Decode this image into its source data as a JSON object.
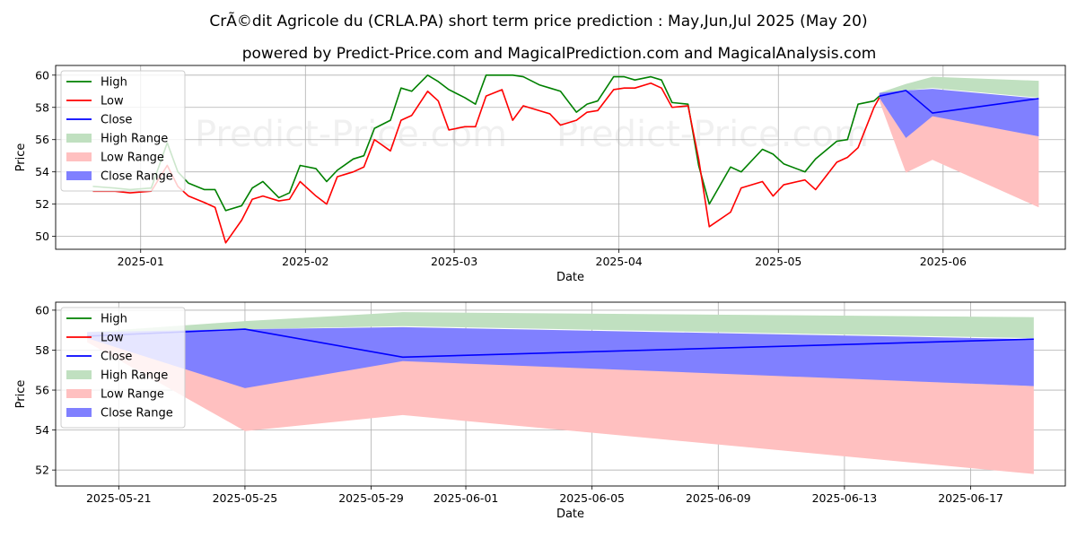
{
  "title": "CrÃ©dit Agricole du (CRLA.PA) short term price prediction : May,Jun,Jul 2025 (May 20)",
  "subtitle": "powered by Predict-Price.com and MagicalPrediction.com and MagicalAnalysis.com",
  "watermark": "Predict-Price.com",
  "colors": {
    "high": "#008000",
    "low": "#ff0000",
    "close": "#0000ff",
    "high_range": "#c0e0c0",
    "low_range": "#ffc0c0",
    "close_range": "#8080ff"
  },
  "legend": {
    "placement": "top-left",
    "items": [
      {
        "label": "High",
        "kind": "line",
        "color": "#008000"
      },
      {
        "label": "Low",
        "kind": "line",
        "color": "#ff0000"
      },
      {
        "label": "Close",
        "kind": "line",
        "color": "#0000ff"
      },
      {
        "label": "High Range",
        "kind": "patch",
        "color": "#c0e0c0"
      },
      {
        "label": "Low Range",
        "kind": "patch",
        "color": "#ffc0c0"
      },
      {
        "label": "Close Range",
        "kind": "patch",
        "color": "#8080ff"
      }
    ]
  },
  "chart_data": [
    {
      "type": "line",
      "xlabel": "Date",
      "ylabel": "Price",
      "xlim": [
        "2024-12-16",
        "2025-06-24"
      ],
      "ylim": [
        49.2,
        60.6
      ],
      "yticks": [
        50,
        52,
        54,
        56,
        58,
        60
      ],
      "xticks": [
        "2025-01",
        "2025-02",
        "2025-03",
        "2025-04",
        "2025-05",
        "2025-06"
      ],
      "grid": true,
      "series": [
        {
          "name": "High",
          "x": [
            "2024-12-23",
            "2024-12-27",
            "2024-12-30",
            "2025-01-03",
            "2025-01-06",
            "2025-01-08",
            "2025-01-10",
            "2025-01-13",
            "2025-01-15",
            "2025-01-17",
            "2025-01-20",
            "2025-01-22",
            "2025-01-24",
            "2025-01-27",
            "2025-01-29",
            "2025-01-31",
            "2025-02-03",
            "2025-02-05",
            "2025-02-07",
            "2025-02-10",
            "2025-02-12",
            "2025-02-14",
            "2025-02-17",
            "2025-02-19",
            "2025-02-21",
            "2025-02-24",
            "2025-02-26",
            "2025-02-28",
            "2025-03-03",
            "2025-03-05",
            "2025-03-07",
            "2025-03-10",
            "2025-03-12",
            "2025-03-14",
            "2025-03-17",
            "2025-03-19",
            "2025-03-21",
            "2025-03-24",
            "2025-03-26",
            "2025-03-28",
            "2025-03-31",
            "2025-04-02",
            "2025-04-04",
            "2025-04-07",
            "2025-04-09",
            "2025-04-11",
            "2025-04-14",
            "2025-04-16",
            "2025-04-18",
            "2025-04-22",
            "2025-04-24",
            "2025-04-28",
            "2025-04-30",
            "2025-05-02",
            "2025-05-06",
            "2025-05-08",
            "2025-05-12",
            "2025-05-14",
            "2025-05-16",
            "2025-05-19",
            "2025-05-20"
          ],
          "values": [
            53.1,
            53.0,
            52.9,
            53.0,
            55.8,
            54.0,
            53.3,
            52.9,
            52.9,
            51.6,
            51.9,
            53.0,
            53.4,
            52.4,
            52.7,
            54.4,
            54.2,
            53.4,
            54.1,
            54.8,
            55.0,
            56.7,
            57.2,
            59.2,
            59.0,
            60.0,
            59.6,
            59.1,
            58.6,
            58.2,
            60.0,
            60.0,
            60.0,
            59.9,
            59.4,
            59.2,
            59.0,
            57.7,
            58.2,
            58.4,
            59.9,
            59.9,
            59.7,
            59.9,
            59.7,
            58.3,
            58.2,
            54.4,
            52.0,
            54.3,
            54.0,
            55.4,
            55.1,
            54.5,
            54.0,
            54.8,
            55.9,
            56.0,
            58.2,
            58.4,
            58.7
          ]
        },
        {
          "name": "Low",
          "x": [
            "2024-12-23",
            "2024-12-27",
            "2024-12-30",
            "2025-01-03",
            "2025-01-06",
            "2025-01-08",
            "2025-01-10",
            "2025-01-13",
            "2025-01-15",
            "2025-01-17",
            "2025-01-20",
            "2025-01-22",
            "2025-01-24",
            "2025-01-27",
            "2025-01-29",
            "2025-01-31",
            "2025-02-03",
            "2025-02-05",
            "2025-02-07",
            "2025-02-10",
            "2025-02-12",
            "2025-02-14",
            "2025-02-17",
            "2025-02-19",
            "2025-02-21",
            "2025-02-24",
            "2025-02-26",
            "2025-02-28",
            "2025-03-03",
            "2025-03-05",
            "2025-03-07",
            "2025-03-10",
            "2025-03-12",
            "2025-03-14",
            "2025-03-17",
            "2025-03-19",
            "2025-03-21",
            "2025-03-24",
            "2025-03-26",
            "2025-03-28",
            "2025-03-31",
            "2025-04-02",
            "2025-04-04",
            "2025-04-07",
            "2025-04-09",
            "2025-04-11",
            "2025-04-14",
            "2025-04-16",
            "2025-04-18",
            "2025-04-22",
            "2025-04-24",
            "2025-04-28",
            "2025-04-30",
            "2025-05-02",
            "2025-05-06",
            "2025-05-08",
            "2025-05-12",
            "2025-05-14",
            "2025-05-16",
            "2025-05-19",
            "2025-05-20"
          ],
          "values": [
            52.8,
            52.8,
            52.7,
            52.8,
            54.4,
            53.1,
            52.5,
            52.1,
            51.8,
            49.6,
            51.0,
            52.3,
            52.5,
            52.2,
            52.3,
            53.4,
            52.5,
            52.0,
            53.7,
            54.0,
            54.3,
            56.0,
            55.3,
            57.2,
            57.5,
            59.0,
            58.4,
            56.6,
            56.8,
            56.8,
            58.7,
            59.1,
            57.2,
            58.1,
            57.8,
            57.6,
            56.9,
            57.2,
            57.7,
            57.8,
            59.1,
            59.2,
            59.2,
            59.5,
            59.2,
            58.0,
            58.1,
            54.8,
            50.6,
            51.5,
            53.0,
            53.4,
            52.5,
            53.2,
            53.5,
            52.9,
            54.6,
            54.9,
            55.5,
            58.0,
            58.6
          ]
        },
        {
          "name": "Close",
          "x": [
            "2025-05-20",
            "2025-05-25",
            "2025-05-30",
            "2025-06-19"
          ],
          "values": [
            58.7,
            59.05,
            57.65,
            58.55
          ]
        },
        {
          "name": "High Range",
          "x": [
            "2025-05-20",
            "2025-05-25",
            "2025-05-30",
            "2025-06-19"
          ],
          "upper": [
            58.9,
            59.45,
            59.9,
            59.65
          ],
          "lower": [
            58.7,
            59.05,
            59.2,
            58.6
          ]
        },
        {
          "name": "Low Range",
          "x": [
            "2025-05-20",
            "2025-05-25",
            "2025-05-30",
            "2025-06-19"
          ],
          "upper": [
            58.7,
            57.0,
            57.5,
            56.2
          ],
          "lower": [
            58.4,
            53.95,
            54.75,
            51.8
          ]
        },
        {
          "name": "Close Range",
          "x": [
            "2025-05-20",
            "2025-05-25",
            "2025-05-30",
            "2025-06-19"
          ],
          "upper": [
            58.9,
            59.05,
            59.15,
            58.55
          ],
          "lower": [
            58.6,
            56.1,
            57.45,
            56.2
          ]
        }
      ]
    },
    {
      "type": "line",
      "xlabel": "Date",
      "ylabel": "Price",
      "xlim": [
        "2025-05-19",
        "2025-06-20"
      ],
      "ylim": [
        51.2,
        60.4
      ],
      "yticks": [
        52,
        54,
        56,
        58,
        60
      ],
      "xticks": [
        "2025-05-21",
        "2025-05-25",
        "2025-05-29",
        "2025-06-01",
        "2025-06-05",
        "2025-06-09",
        "2025-06-13",
        "2025-06-17"
      ],
      "grid": true,
      "series": [
        {
          "name": "Close",
          "x": [
            "2025-05-20",
            "2025-05-25",
            "2025-05-30",
            "2025-06-19"
          ],
          "values": [
            58.7,
            59.05,
            57.65,
            58.55
          ]
        },
        {
          "name": "High Range",
          "x": [
            "2025-05-20",
            "2025-05-25",
            "2025-05-30",
            "2025-06-19"
          ],
          "upper": [
            58.9,
            59.45,
            59.9,
            59.65
          ],
          "lower": [
            58.7,
            59.05,
            59.2,
            58.6
          ]
        },
        {
          "name": "Low Range",
          "x": [
            "2025-05-20",
            "2025-05-25",
            "2025-05-30",
            "2025-06-19"
          ],
          "upper": [
            58.7,
            57.0,
            57.5,
            56.2
          ],
          "lower": [
            58.4,
            53.95,
            54.75,
            51.8
          ]
        },
        {
          "name": "Close Range",
          "x": [
            "2025-05-20",
            "2025-05-25",
            "2025-05-30",
            "2025-06-19"
          ],
          "upper": [
            58.9,
            59.05,
            59.15,
            58.55
          ],
          "lower": [
            58.6,
            56.1,
            57.45,
            56.2
          ]
        }
      ]
    }
  ]
}
